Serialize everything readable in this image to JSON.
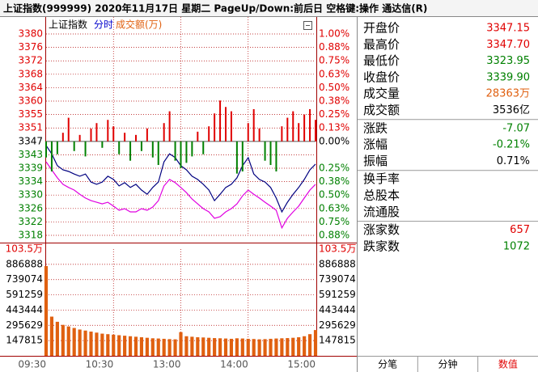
{
  "header": {
    "title": "上证指数(999999)  2020年11月17日 星期二 PageUp/Down:前后日 空格键:操作 通达信(R)"
  },
  "chart_data": {
    "type": "line",
    "subtitle": "分时",
    "subtitle_color": "#0000cc",
    "x": [
      "09:30",
      "09:35",
      "09:40",
      "09:45",
      "09:50",
      "09:55",
      "10:00",
      "10:05",
      "10:10",
      "10:15",
      "10:20",
      "10:25",
      "10:30",
      "10:35",
      "10:40",
      "10:45",
      "10:50",
      "10:55",
      "11:00",
      "11:05",
      "11:10",
      "11:15",
      "11:20",
      "11:25",
      "13:00",
      "13:05",
      "13:10",
      "13:15",
      "13:20",
      "13:25",
      "13:30",
      "13:35",
      "13:40",
      "13:45",
      "13:50",
      "13:55",
      "14:00",
      "14:05",
      "14:10",
      "14:15",
      "14:20",
      "14:25",
      "14:30",
      "14:35",
      "14:40",
      "14:45",
      "14:50",
      "14:55",
      "15:00"
    ],
    "xticks": [
      "09:30",
      "10:30",
      "13:00",
      "14:00",
      "15:00"
    ],
    "ylim": [
      3317.69,
      3380.44
    ],
    "yticks": [
      {
        "value": 3380.44,
        "label": "3380"
      },
      {
        "value": 3376.25,
        "label": "3376"
      },
      {
        "value": 3372.07,
        "label": "3372"
      },
      {
        "value": 3367.89,
        "label": "3368"
      },
      {
        "value": 3363.7,
        "label": "3364"
      },
      {
        "value": 3359.52,
        "label": "3360"
      },
      {
        "value": 3355.34,
        "label": "3355"
      },
      {
        "value": 3351.15,
        "label": "3351"
      },
      {
        "value": 3346.97,
        "label": "3347"
      },
      {
        "value": 3342.79,
        "label": "3343"
      },
      {
        "value": 3338.6,
        "label": "3339"
      },
      {
        "value": 3334.42,
        "label": "3334"
      },
      {
        "value": 3330.24,
        "label": "3330"
      },
      {
        "value": 3326.05,
        "label": "3326"
      },
      {
        "value": 3321.87,
        "label": "3322"
      },
      {
        "value": 3317.69,
        "label": "3318"
      }
    ],
    "y2lim": [
      -0.875,
      1.0
    ],
    "y2ticks": [
      {
        "value": 1.0,
        "label": "1.00%"
      },
      {
        "value": 0.875,
        "label": "0.88%"
      },
      {
        "value": 0.75,
        "label": "0.75%"
      },
      {
        "value": 0.625,
        "label": "0.63%"
      },
      {
        "value": 0.5,
        "label": "0.50%"
      },
      {
        "value": 0.375,
        "label": "0.38%"
      },
      {
        "value": 0.25,
        "label": "0.25%"
      },
      {
        "value": 0.125,
        "label": "0.13%"
      },
      {
        "value": 0,
        "label": "0.00%"
      },
      {
        "value": -0.25,
        "label": "0.25%"
      },
      {
        "value": -0.375,
        "label": "0.38%"
      },
      {
        "value": -0.5,
        "label": "0.50%"
      },
      {
        "value": -0.625,
        "label": "0.63%"
      },
      {
        "value": -0.75,
        "label": "0.75%"
      },
      {
        "value": -0.875,
        "label": "0.88%"
      }
    ],
    "up_color": "#e00000",
    "down_color": "#008000",
    "grid": true,
    "series": [
      {
        "name": "上证指数",
        "color": "#000080",
        "values": [
          3345.7,
          3343.1,
          3339.4,
          3338.1,
          3337.6,
          3336.8,
          3336.1,
          3336.8,
          3334.3,
          3333.6,
          3334.3,
          3336.1,
          3335.1,
          3333.1,
          3334.1,
          3332.6,
          3333.6,
          3331.8,
          3330.5,
          3332.6,
          3334.3,
          3340.6,
          3343.1,
          3341.9,
          3339.4,
          3338.1,
          3336.1,
          3335.1,
          3333.6,
          3331.8,
          3328.5,
          3330.5,
          3332.6,
          3333.6,
          3335.6,
          3339.4,
          3341.9,
          3336.8,
          3335.1,
          3334.3,
          3332.6,
          3329.3,
          3325.0,
          3328.0,
          3330.5,
          3332.6,
          3335.1,
          3338.1,
          3339.9
        ]
      },
      {
        "color": "#e000e0",
        "values": [
          3340.6,
          3338.1,
          3335.6,
          3333.6,
          3332.6,
          3331.8,
          3330.5,
          3329.3,
          3328.5,
          3328.0,
          3327.5,
          3328.0,
          3326.8,
          3325.5,
          3326.0,
          3325.0,
          3325.0,
          3326.0,
          3325.5,
          3326.5,
          3328.5,
          3333.1,
          3335.1,
          3334.1,
          3332.6,
          3331.0,
          3329.0,
          3327.5,
          3326.0,
          3325.0,
          3323.0,
          3323.5,
          3325.0,
          3326.0,
          3327.5,
          3330.0,
          3331.8,
          3330.5,
          3329.3,
          3328.0,
          3326.8,
          3325.5,
          3320.0,
          3323.0,
          3325.0,
          3326.8,
          3329.3,
          3331.8,
          3333.6
        ]
      },
      {
        "type": "bar",
        "axis": "y2",
        "values": [
          -0.15,
          -0.28,
          -0.12,
          0.08,
          0.22,
          -0.09,
          0.06,
          -0.14,
          0.12,
          0.17,
          -0.06,
          0.2,
          0.14,
          -0.12,
          0.08,
          -0.18,
          0.06,
          -0.09,
          0.12,
          -0.15,
          -0.22,
          0.17,
          0.28,
          -0.18,
          -0.25,
          -0.2,
          -0.14,
          0.09,
          -0.12,
          0.14,
          0.26,
          0.38,
          0.32,
          0.28,
          -0.3,
          -0.28,
          0.17,
          0.3,
          0.12,
          -0.18,
          -0.22,
          -0.28,
          0.14,
          0.22,
          0.28,
          0.17,
          0.25,
          0.3,
          0.2
        ]
      }
    ],
    "volume": {
      "title": "成交额(万)",
      "color": "#e06010",
      "ylim": [
        0,
        1034705
      ],
      "yticks": [
        {
          "value": 1034705,
          "label": "103.5万"
        },
        886888,
        739074,
        591259,
        443444,
        295629,
        147815
      ],
      "values": [
        870000,
        380000,
        330000,
        300000,
        285000,
        270000,
        255000,
        245000,
        235000,
        225000,
        215000,
        210000,
        205000,
        200000,
        195000,
        190000,
        185000,
        180000,
        175000,
        170000,
        168000,
        165000,
        162000,
        160000,
        230000,
        190000,
        185000,
        180000,
        178000,
        175000,
        172000,
        170000,
        168000,
        165000,
        170000,
        168000,
        165000,
        163000,
        160000,
        162000,
        165000,
        168000,
        170000,
        172000,
        175000,
        180000,
        190000,
        210000,
        250000
      ]
    }
  },
  "panel": {
    "groups": [
      [
        {
          "label": "开盘价",
          "value": "3347.15",
          "color": "#e00000"
        },
        {
          "label": "最高价",
          "value": "3347.70",
          "color": "#e00000"
        },
        {
          "label": "最低价",
          "value": "3323.95",
          "color": "#008000"
        },
        {
          "label": "收盘价",
          "value": "3339.90",
          "color": "#008000"
        },
        {
          "label": "成交量",
          "value": "28363万",
          "color": "#e06010"
        },
        {
          "label": "成交额",
          "value": "3536亿",
          "color": "#000000"
        }
      ],
      [
        {
          "label": "涨跌",
          "value": "-7.07",
          "color": "#008000"
        },
        {
          "label": "涨幅",
          "value": "-0.21%",
          "color": "#008000"
        },
        {
          "label": "振幅",
          "value": "0.71%",
          "color": "#000000"
        }
      ],
      [
        {
          "label": "换手率"
        },
        {
          "label": "总股本"
        },
        {
          "label": "流通股"
        }
      ],
      [
        {
          "label": "涨家数",
          "value": "657",
          "color": "#e00000"
        },
        {
          "label": "跌家数",
          "value": "1072",
          "color": "#008000"
        }
      ]
    ],
    "tabs": [
      {
        "label": "分笔",
        "color": "#000000"
      },
      {
        "label": "分钟",
        "color": "#000000"
      },
      {
        "label": "数值",
        "color": "#e00000"
      }
    ]
  }
}
